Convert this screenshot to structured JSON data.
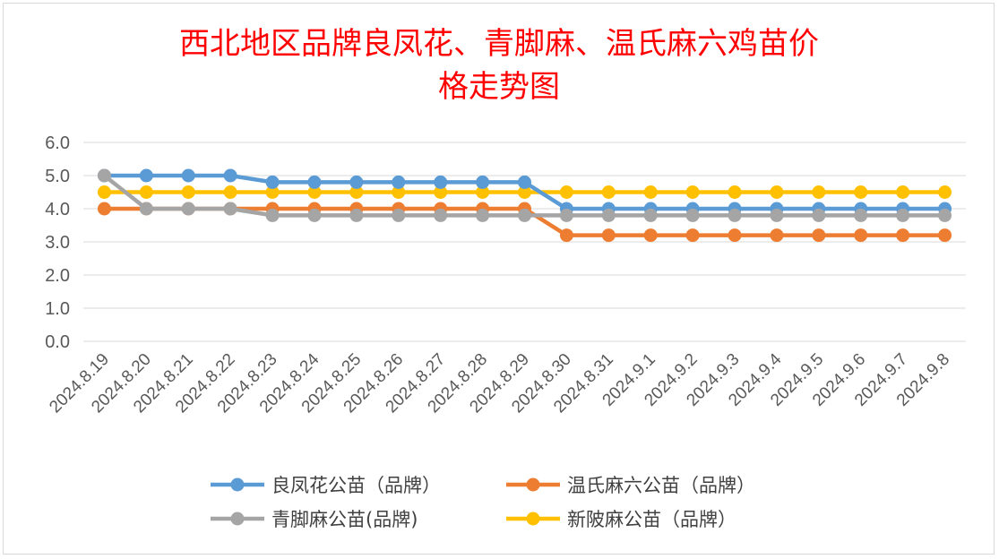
{
  "chart_data": {
    "type": "line",
    "title_lines": [
      "西北地区品牌良凤花、青脚麻、温氏麻六鸡苗价",
      "格走势图"
    ],
    "xlabel": "",
    "ylabel": "",
    "ylim": [
      0,
      6
    ],
    "ytick_values": [
      0,
      1,
      2,
      3,
      4,
      5,
      6
    ],
    "ytick_labels": [
      "0.0",
      "1.0",
      "2.0",
      "3.0",
      "4.0",
      "5.0",
      "6.0"
    ],
    "grid": true,
    "legend_position": "bottom",
    "categories": [
      "2024.8.19",
      "2024.8.20",
      "2024.8.21",
      "2024.8.22",
      "2024.8.23",
      "2024.8.24",
      "2024.8.25",
      "2024.8.26",
      "2024.8.27",
      "2024.8.28",
      "2024.8.29",
      "2024.8.30",
      "2024.8.31",
      "2024.9.1",
      "2024.9.2",
      "2024.9.3",
      "2024.9.4",
      "2024.9.5",
      "2024.9.6",
      "2024.9.7",
      "2024.9.8"
    ],
    "series": [
      {
        "name": "良凤花公苗（品牌）",
        "color": "#5b9bd5",
        "values": [
          5.0,
          5.0,
          5.0,
          5.0,
          4.8,
          4.8,
          4.8,
          4.8,
          4.8,
          4.8,
          4.8,
          4.0,
          4.0,
          4.0,
          4.0,
          4.0,
          4.0,
          4.0,
          4.0,
          4.0,
          4.0
        ]
      },
      {
        "name": "温氏麻六公苗（品牌）",
        "color": "#ed7d31",
        "values": [
          4.0,
          4.0,
          4.0,
          4.0,
          4.0,
          4.0,
          4.0,
          4.0,
          4.0,
          4.0,
          4.0,
          3.2,
          3.2,
          3.2,
          3.2,
          3.2,
          3.2,
          3.2,
          3.2,
          3.2,
          3.2
        ]
      },
      {
        "name": "青脚麻公苗(品牌)",
        "color": "#a5a5a5",
        "values": [
          5.0,
          4.0,
          4.0,
          4.0,
          3.8,
          3.8,
          3.8,
          3.8,
          3.8,
          3.8,
          3.8,
          3.8,
          3.8,
          3.8,
          3.8,
          3.8,
          3.8,
          3.8,
          3.8,
          3.8,
          3.8
        ]
      },
      {
        "name": "新陂麻公苗（品牌）",
        "color": "#ffc000",
        "values": [
          4.5,
          4.5,
          4.5,
          4.5,
          4.5,
          4.5,
          4.5,
          4.5,
          4.5,
          4.5,
          4.5,
          4.5,
          4.5,
          4.5,
          4.5,
          4.5,
          4.5,
          4.5,
          4.5,
          4.5,
          4.5
        ]
      }
    ],
    "draw_order": [
      3,
      0,
      1,
      2
    ]
  }
}
